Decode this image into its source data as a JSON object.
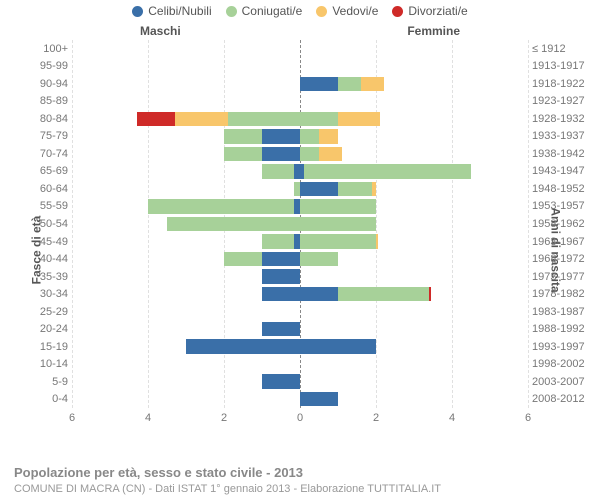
{
  "legend": [
    {
      "label": "Celibi/Nubili",
      "color": "#3a6fa8"
    },
    {
      "label": "Coniugati/e",
      "color": "#a7d199"
    },
    {
      "label": "Vedovi/e",
      "color": "#f8c66b"
    },
    {
      "label": "Divorziati/e",
      "color": "#cf2a28"
    }
  ],
  "side_labels": {
    "left": "Maschi",
    "right": "Femmine"
  },
  "axis_titles": {
    "left": "Fasce di età",
    "right": "Anni di nascita"
  },
  "x_axis": {
    "max": 6,
    "ticks": [
      6,
      4,
      2,
      0,
      2,
      4,
      6
    ]
  },
  "colors": {
    "celibi": "#3a6fa8",
    "coniugati": "#a7d199",
    "vedovi": "#f8c66b",
    "divorziati": "#cf2a28",
    "grid": "#e0e0e0",
    "zero": "#888888",
    "text": "#777777"
  },
  "footer": {
    "title": "Popolazione per età, sesso e stato civile - 2013",
    "sub": "COMUNE DI MACRA (CN) - Dati ISTAT 1° gennaio 2013 - Elaborazione TUTTITALIA.IT"
  },
  "rows": [
    {
      "age": "100+",
      "birth": "≤ 1912",
      "m": {
        "cel": 0,
        "con": 0,
        "ved": 0,
        "div": 0
      },
      "f": {
        "cel": 0,
        "con": 0,
        "ved": 0,
        "div": 0
      }
    },
    {
      "age": "95-99",
      "birth": "1913-1917",
      "m": {
        "cel": 0,
        "con": 0,
        "ved": 0,
        "div": 0
      },
      "f": {
        "cel": 0,
        "con": 0,
        "ved": 0,
        "div": 0
      }
    },
    {
      "age": "90-94",
      "birth": "1918-1922",
      "m": {
        "cel": 0,
        "con": 0,
        "ved": 0,
        "div": 0
      },
      "f": {
        "cel": 1,
        "con": 0.6,
        "ved": 0.6,
        "div": 0
      }
    },
    {
      "age": "85-89",
      "birth": "1923-1927",
      "m": {
        "cel": 0,
        "con": 0,
        "ved": 0,
        "div": 0
      },
      "f": {
        "cel": 0,
        "con": 0,
        "ved": 0,
        "div": 0
      }
    },
    {
      "age": "80-84",
      "birth": "1928-1932",
      "m": {
        "cel": 0,
        "con": 1.9,
        "ved": 1.4,
        "div": 1
      },
      "f": {
        "cel": 0,
        "con": 1,
        "ved": 1.1,
        "div": 0
      }
    },
    {
      "age": "75-79",
      "birth": "1933-1937",
      "m": {
        "cel": 1,
        "con": 1,
        "ved": 0,
        "div": 0
      },
      "f": {
        "cel": 0,
        "con": 0.5,
        "ved": 0.5,
        "div": 0
      }
    },
    {
      "age": "70-74",
      "birth": "1938-1942",
      "m": {
        "cel": 1,
        "con": 1,
        "ved": 0,
        "div": 0
      },
      "f": {
        "cel": 0,
        "con": 0.5,
        "ved": 0.6,
        "div": 0
      }
    },
    {
      "age": "65-69",
      "birth": "1943-1947",
      "m": {
        "cel": 0.15,
        "con": 0.85,
        "ved": 0,
        "div": 0
      },
      "f": {
        "cel": 0.1,
        "con": 4.4,
        "ved": 0,
        "div": 0
      }
    },
    {
      "age": "60-64",
      "birth": "1948-1952",
      "m": {
        "cel": 0,
        "con": 0.15,
        "ved": 0,
        "div": 0
      },
      "f": {
        "cel": 1,
        "con": 0.9,
        "ved": 0.1,
        "div": 0
      }
    },
    {
      "age": "55-59",
      "birth": "1953-1957",
      "m": {
        "cel": 0.15,
        "con": 3.85,
        "ved": 0,
        "div": 0
      },
      "f": {
        "cel": 0,
        "con": 2,
        "ved": 0,
        "div": 0
      }
    },
    {
      "age": "50-54",
      "birth": "1958-1962",
      "m": {
        "cel": 0,
        "con": 3.5,
        "ved": 0,
        "div": 0
      },
      "f": {
        "cel": 0,
        "con": 2,
        "ved": 0,
        "div": 0
      }
    },
    {
      "age": "45-49",
      "birth": "1963-1967",
      "m": {
        "cel": 0.15,
        "con": 0.85,
        "ved": 0,
        "div": 0
      },
      "f": {
        "cel": 0,
        "con": 2,
        "ved": 0.05,
        "div": 0
      }
    },
    {
      "age": "40-44",
      "birth": "1968-1972",
      "m": {
        "cel": 1,
        "con": 1,
        "ved": 0,
        "div": 0
      },
      "f": {
        "cel": 0,
        "con": 1,
        "ved": 0,
        "div": 0
      }
    },
    {
      "age": "35-39",
      "birth": "1973-1977",
      "m": {
        "cel": 1,
        "con": 0,
        "ved": 0,
        "div": 0
      },
      "f": {
        "cel": 0,
        "con": 0,
        "ved": 0,
        "div": 0
      }
    },
    {
      "age": "30-34",
      "birth": "1978-1982",
      "m": {
        "cel": 1,
        "con": 0,
        "ved": 0,
        "div": 0
      },
      "f": {
        "cel": 1,
        "con": 2.4,
        "ved": 0,
        "div": 0.05
      }
    },
    {
      "age": "25-29",
      "birth": "1983-1987",
      "m": {
        "cel": 0,
        "con": 0,
        "ved": 0,
        "div": 0
      },
      "f": {
        "cel": 0,
        "con": 0,
        "ved": 0,
        "div": 0
      }
    },
    {
      "age": "20-24",
      "birth": "1988-1992",
      "m": {
        "cel": 1,
        "con": 0,
        "ved": 0,
        "div": 0
      },
      "f": {
        "cel": 0,
        "con": 0,
        "ved": 0,
        "div": 0
      }
    },
    {
      "age": "15-19",
      "birth": "1993-1997",
      "m": {
        "cel": 3,
        "con": 0,
        "ved": 0,
        "div": 0
      },
      "f": {
        "cel": 2,
        "con": 0,
        "ved": 0,
        "div": 0
      }
    },
    {
      "age": "10-14",
      "birth": "1998-2002",
      "m": {
        "cel": 0,
        "con": 0,
        "ved": 0,
        "div": 0
      },
      "f": {
        "cel": 0,
        "con": 0,
        "ved": 0,
        "div": 0
      }
    },
    {
      "age": "5-9",
      "birth": "2003-2007",
      "m": {
        "cel": 1,
        "con": 0,
        "ved": 0,
        "div": 0
      },
      "f": {
        "cel": 0,
        "con": 0,
        "ved": 0,
        "div": 0
      }
    },
    {
      "age": "0-4",
      "birth": "2008-2012",
      "m": {
        "cel": 0,
        "con": 0,
        "ved": 0,
        "div": 0
      },
      "f": {
        "cel": 1,
        "con": 0,
        "ved": 0,
        "div": 0
      }
    }
  ]
}
